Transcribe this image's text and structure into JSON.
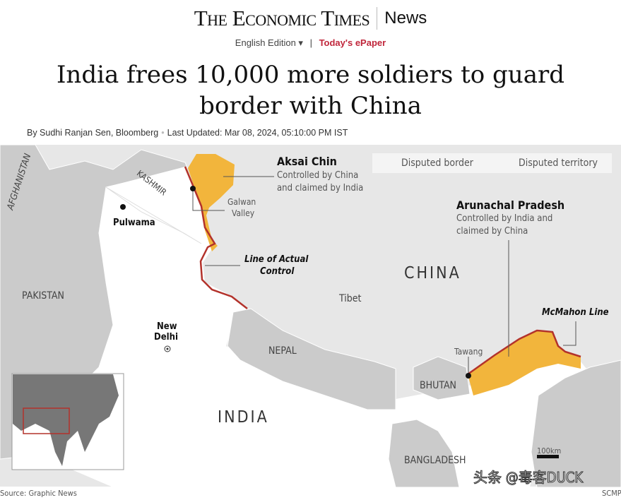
{
  "header": {
    "logo": "The Economic Times",
    "section": "News",
    "edition": "English Edition ▾",
    "separator": "|",
    "epaper": "Today's ePaper"
  },
  "article": {
    "headline": "India frees 10,000 more soldiers to guard border with China",
    "author": "By Sudhi Ranjan Sen, Bloomberg",
    "updated": "Last Updated: Mar 08, 2024, 05:10:00 PM IST"
  },
  "map": {
    "legend": {
      "border": "Disputed border",
      "territory": "Disputed territory"
    },
    "colors": {
      "disputed_border": "#b3322b",
      "disputed_territory": "#f2b53c",
      "china": "#e7e7e7",
      "neighbours": "#cbcbcb",
      "india": "#ffffff"
    },
    "aksai_chin": {
      "title": "Aksai Chin",
      "desc1": "Controlled by China",
      "desc2": "and claimed by India"
    },
    "arunachal": {
      "title": "Arunachal Pradesh",
      "desc1": "Controlled by India and",
      "desc2": "claimed by China"
    },
    "labels": {
      "afghanistan": "AFGHANISTAN",
      "kashmir": "KASHMIR",
      "pulwama": "Pulwama",
      "galwan1": "Galwan",
      "galwan2": "Valley",
      "lac1": "Line of Actual",
      "lac2": "Control",
      "pakistan": "PAKISTAN",
      "china": "CHINA",
      "tibet": "Tibet",
      "mcmahon": "McMahon Line",
      "newdelhi1": "New",
      "newdelhi2": "Delhi",
      "nepal": "NEPAL",
      "tawang": "Tawang",
      "bhutan": "BHUTAN",
      "india": "INDIA",
      "bangladesh": "BANGLADESH",
      "scale": "100km"
    },
    "source": "Source: Graphic News",
    "credit": "SCMP",
    "watermark": "头条 @毒客DUCK"
  }
}
